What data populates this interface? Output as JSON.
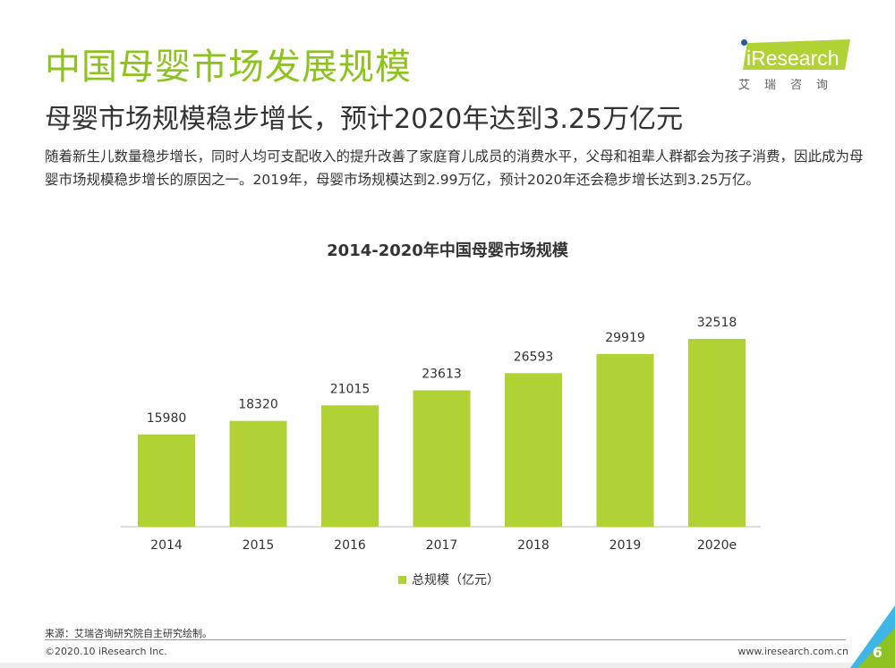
{
  "header": {
    "title": "中国母婴市场发展规模",
    "subtitle": "母婴市场规模稳步增长，预计2020年达到3.25万亿元",
    "description": "随着新生儿数量稳步增长，同时人均可支配收入的提升改善了家庭育儿成员的消费水平，父母和祖辈人群都会为孩子消费，因此成为母婴市场规模稳步增长的原因之一。2019年，母婴市场规模达到2.99万亿，预计2020年还会稳步增长达到3.25万亿。"
  },
  "logo": {
    "brand": "iResearch",
    "cn": "艾瑞咨询"
  },
  "chart_data": {
    "type": "bar",
    "title": "2014-2020年中国母婴市场规模",
    "categories": [
      "2014",
      "2015",
      "2016",
      "2017",
      "2018",
      "2019",
      "2020e"
    ],
    "series": [
      {
        "name": "总规模（亿元）",
        "values": [
          15980,
          18320,
          21015,
          23613,
          26593,
          29919,
          32518
        ],
        "color": "#b1d235"
      }
    ],
    "xlabel": "",
    "ylabel": "",
    "ylim": [
      0,
      32518
    ],
    "grid": false,
    "legend_position": "bottom"
  },
  "footer": {
    "source": "来源：艾瑞咨询研究院自主研究绘制。",
    "copyright": "©2020.10 iResearch Inc.",
    "url": "www.iresearch.com.cn",
    "page": "6"
  }
}
